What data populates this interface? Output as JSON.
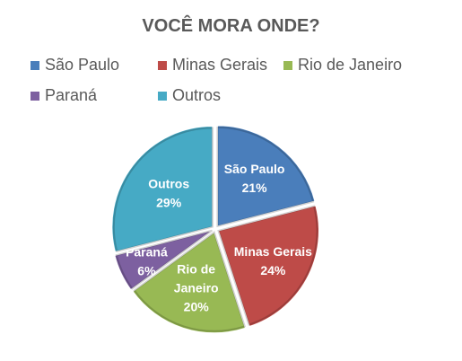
{
  "chart_data": {
    "type": "pie",
    "title": "VOCÊ MORA ONDE?",
    "legend_position": "top",
    "exploded": true,
    "slices": [
      {
        "name": "São Paulo",
        "value": 21,
        "label_lines": [
          "São Paulo",
          "21%"
        ],
        "color": "#4a7ebb"
      },
      {
        "name": "Minas Gerais",
        "value": 24,
        "label_lines": [
          "Minas Gerais",
          "24%"
        ],
        "color": "#be4b48"
      },
      {
        "name": "Rio de Janeiro",
        "value": 20,
        "label_lines": [
          "Rio de",
          "Janeiro",
          "20%"
        ],
        "color": "#98b954"
      },
      {
        "name": "Paraná",
        "value": 6,
        "label_lines": [
          "Paraná",
          "6%"
        ],
        "color": "#7d60a0"
      },
      {
        "name": "Outros",
        "value": 29,
        "label_lines": [
          "Outros",
          "29%"
        ],
        "color": "#46aac5"
      }
    ]
  }
}
